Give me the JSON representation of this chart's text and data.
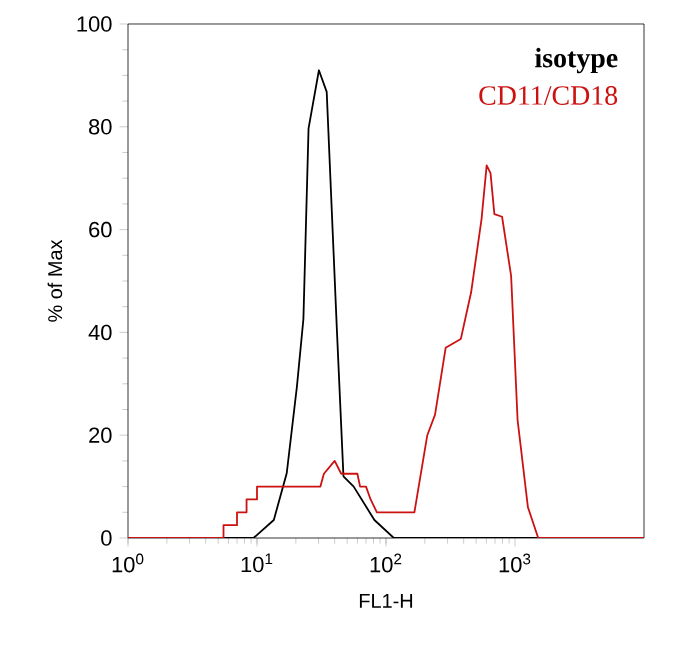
{
  "chart_data": {
    "type": "line",
    "xlabel": "FL1-H",
    "ylabel": "% of Max",
    "log": "x",
    "legend": "top right",
    "xlim": [
      1,
      10000
    ],
    "ylim": [
      0,
      100
    ],
    "xticks": [
      {
        "value": 1,
        "label": "10$^{0}$"
      },
      {
        "value": 10,
        "label": "10$^{1}$"
      },
      {
        "value": 100,
        "label": "10$^{2}$"
      },
      {
        "value": 1000,
        "label": "10$^{3}$"
      }
    ],
    "yticks": [
      0,
      20,
      40,
      60,
      80,
      100
    ],
    "series": [
      {
        "name": "isotype",
        "color": "#000000",
        "x": [
          1,
          9.4,
          13.5,
          17,
          20.4,
          22.9,
          25.1,
          30.2,
          34.7,
          41.7,
          46.8,
          56.2,
          81.3,
          115,
          10000
        ],
        "values": [
          0,
          0,
          3.5,
          12.6,
          29.5,
          42.6,
          79.7,
          91,
          86.8,
          40,
          12,
          10,
          3.5,
          0,
          0
        ]
      },
      {
        "name": "CD11/CD18",
        "color": "#cc1111",
        "x": [
          1,
          5.5,
          5.5,
          7,
          7,
          8.3,
          8.3,
          10,
          10,
          31,
          33,
          40,
          45,
          60,
          63,
          70,
          76,
          85,
          166,
          209,
          240,
          290,
          380,
          457,
          550,
          603,
          646,
          692,
          794,
          933,
          1047,
          1259,
          1514,
          10000
        ],
        "values": [
          0,
          0,
          2.5,
          2.5,
          5,
          5,
          7.5,
          7.5,
          10,
          10,
          12.5,
          15,
          12.5,
          12.5,
          10,
          10,
          7.5,
          5,
          5,
          20,
          24,
          37,
          38.7,
          47.8,
          62,
          72.5,
          71,
          63,
          62.5,
          51,
          23,
          6,
          0,
          0
        ]
      }
    ]
  }
}
